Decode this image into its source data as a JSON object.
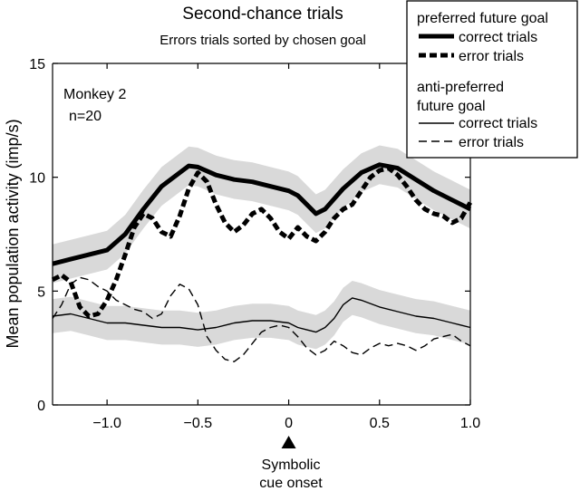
{
  "chart_data": {
    "type": "line",
    "title": "Second-chance trials",
    "subtitle": "Errors trials sorted by chosen goal",
    "xlabel": "",
    "ylabel": "Mean population activity (imp/s)",
    "xlim": [
      -1.3,
      1.0
    ],
    "ylim": [
      0,
      15
    ],
    "xticks": [
      -1.0,
      -0.5,
      0,
      0.5,
      1.0
    ],
    "xtick_labels": [
      "−1.0",
      "−0.5",
      "0",
      "0.5",
      "1.0"
    ],
    "yticks": [
      0,
      5,
      10,
      15
    ],
    "ytick_labels": [
      "0",
      "5",
      "10",
      "15"
    ],
    "annotation": {
      "line1": "Monkey 2",
      "line2": "n=20"
    },
    "marker_label": {
      "line1": "Symbolic",
      "line2": "cue onset"
    },
    "legend": {
      "placement": "top-right",
      "group1_title": "preferred future goal",
      "group2_title_line1": "anti-preferred",
      "group2_title_line2": "future goal",
      "correct_label": "correct trials",
      "error_label": "error trials"
    },
    "series": [
      {
        "style": "thick-solid",
        "band_halfwidth": 0.85,
        "points": [
          [
            -1.3,
            6.2
          ],
          [
            -1.2,
            6.4
          ],
          [
            -1.1,
            6.6
          ],
          [
            -1.0,
            6.8
          ],
          [
            -0.9,
            7.5
          ],
          [
            -0.8,
            8.6
          ],
          [
            -0.7,
            9.6
          ],
          [
            -0.6,
            10.2
          ],
          [
            -0.55,
            10.5
          ],
          [
            -0.5,
            10.45
          ],
          [
            -0.4,
            10.1
          ],
          [
            -0.3,
            9.9
          ],
          [
            -0.2,
            9.8
          ],
          [
            -0.1,
            9.6
          ],
          [
            0.0,
            9.4
          ],
          [
            0.05,
            9.2
          ],
          [
            0.1,
            8.8
          ],
          [
            0.15,
            8.4
          ],
          [
            0.2,
            8.6
          ],
          [
            0.3,
            9.5
          ],
          [
            0.4,
            10.2
          ],
          [
            0.5,
            10.55
          ],
          [
            0.6,
            10.4
          ],
          [
            0.7,
            9.9
          ],
          [
            0.8,
            9.4
          ],
          [
            0.9,
            9.0
          ],
          [
            1.0,
            8.6
          ]
        ]
      },
      {
        "style": "thick-dashed",
        "points": [
          [
            -1.3,
            5.5
          ],
          [
            -1.25,
            5.7
          ],
          [
            -1.2,
            5.4
          ],
          [
            -1.15,
            4.3
          ],
          [
            -1.1,
            3.9
          ],
          [
            -1.05,
            4.0
          ],
          [
            -1.0,
            4.6
          ],
          [
            -0.95,
            5.5
          ],
          [
            -0.9,
            6.6
          ],
          [
            -0.85,
            7.8
          ],
          [
            -0.8,
            8.4
          ],
          [
            -0.75,
            8.2
          ],
          [
            -0.7,
            7.6
          ],
          [
            -0.65,
            7.4
          ],
          [
            -0.6,
            8.3
          ],
          [
            -0.55,
            9.5
          ],
          [
            -0.5,
            10.2
          ],
          [
            -0.45,
            9.8
          ],
          [
            -0.4,
            8.8
          ],
          [
            -0.35,
            8.0
          ],
          [
            -0.3,
            7.6
          ],
          [
            -0.25,
            7.9
          ],
          [
            -0.2,
            8.4
          ],
          [
            -0.15,
            8.6
          ],
          [
            -0.1,
            8.2
          ],
          [
            -0.05,
            7.6
          ],
          [
            0.0,
            7.3
          ],
          [
            0.05,
            7.8
          ],
          [
            0.1,
            7.4
          ],
          [
            0.15,
            7.2
          ],
          [
            0.2,
            7.6
          ],
          [
            0.25,
            8.2
          ],
          [
            0.3,
            8.6
          ],
          [
            0.35,
            8.8
          ],
          [
            0.4,
            9.4
          ],
          [
            0.45,
            10.0
          ],
          [
            0.5,
            10.3
          ],
          [
            0.55,
            10.4
          ],
          [
            0.6,
            10.1
          ],
          [
            0.65,
            9.6
          ],
          [
            0.7,
            9.0
          ],
          [
            0.75,
            8.6
          ],
          [
            0.8,
            8.4
          ],
          [
            0.85,
            8.3
          ],
          [
            0.9,
            8.0
          ],
          [
            0.95,
            8.2
          ],
          [
            1.0,
            8.9
          ]
        ]
      },
      {
        "style": "thin-solid",
        "band_halfwidth": 0.75,
        "points": [
          [
            -1.3,
            3.9
          ],
          [
            -1.2,
            4.0
          ],
          [
            -1.1,
            3.8
          ],
          [
            -1.0,
            3.6
          ],
          [
            -0.9,
            3.6
          ],
          [
            -0.8,
            3.5
          ],
          [
            -0.7,
            3.4
          ],
          [
            -0.6,
            3.4
          ],
          [
            -0.5,
            3.3
          ],
          [
            -0.4,
            3.4
          ],
          [
            -0.3,
            3.6
          ],
          [
            -0.2,
            3.7
          ],
          [
            -0.1,
            3.7
          ],
          [
            0.0,
            3.6
          ],
          [
            0.05,
            3.4
          ],
          [
            0.1,
            3.3
          ],
          [
            0.15,
            3.2
          ],
          [
            0.2,
            3.4
          ],
          [
            0.25,
            3.8
          ],
          [
            0.3,
            4.4
          ],
          [
            0.35,
            4.7
          ],
          [
            0.4,
            4.6
          ],
          [
            0.5,
            4.3
          ],
          [
            0.6,
            4.1
          ],
          [
            0.7,
            3.9
          ],
          [
            0.8,
            3.8
          ],
          [
            0.9,
            3.6
          ],
          [
            1.0,
            3.4
          ]
        ]
      },
      {
        "style": "thin-dashed",
        "points": [
          [
            -1.3,
            3.8
          ],
          [
            -1.25,
            4.4
          ],
          [
            -1.2,
            5.3
          ],
          [
            -1.15,
            5.6
          ],
          [
            -1.1,
            5.5
          ],
          [
            -1.05,
            5.2
          ],
          [
            -1.0,
            5.0
          ],
          [
            -0.95,
            4.6
          ],
          [
            -0.9,
            4.4
          ],
          [
            -0.85,
            4.2
          ],
          [
            -0.8,
            4.1
          ],
          [
            -0.75,
            3.8
          ],
          [
            -0.7,
            4.0
          ],
          [
            -0.65,
            4.8
          ],
          [
            -0.6,
            5.3
          ],
          [
            -0.55,
            5.1
          ],
          [
            -0.5,
            4.4
          ],
          [
            -0.45,
            3.0
          ],
          [
            -0.4,
            2.4
          ],
          [
            -0.35,
            2.0
          ],
          [
            -0.3,
            1.9
          ],
          [
            -0.25,
            2.2
          ],
          [
            -0.2,
            2.7
          ],
          [
            -0.15,
            3.2
          ],
          [
            -0.1,
            3.4
          ],
          [
            -0.05,
            3.5
          ],
          [
            0.0,
            3.4
          ],
          [
            0.05,
            3.0
          ],
          [
            0.1,
            2.5
          ],
          [
            0.15,
            2.2
          ],
          [
            0.2,
            2.4
          ],
          [
            0.25,
            2.8
          ],
          [
            0.3,
            2.6
          ],
          [
            0.35,
            2.3
          ],
          [
            0.4,
            2.2
          ],
          [
            0.45,
            2.5
          ],
          [
            0.5,
            2.7
          ],
          [
            0.55,
            2.6
          ],
          [
            0.6,
            2.7
          ],
          [
            0.65,
            2.6
          ],
          [
            0.7,
            2.4
          ],
          [
            0.75,
            2.6
          ],
          [
            0.8,
            2.9
          ],
          [
            0.85,
            3.0
          ],
          [
            0.9,
            3.1
          ],
          [
            0.95,
            2.8
          ],
          [
            1.0,
            2.6
          ]
        ]
      }
    ]
  }
}
